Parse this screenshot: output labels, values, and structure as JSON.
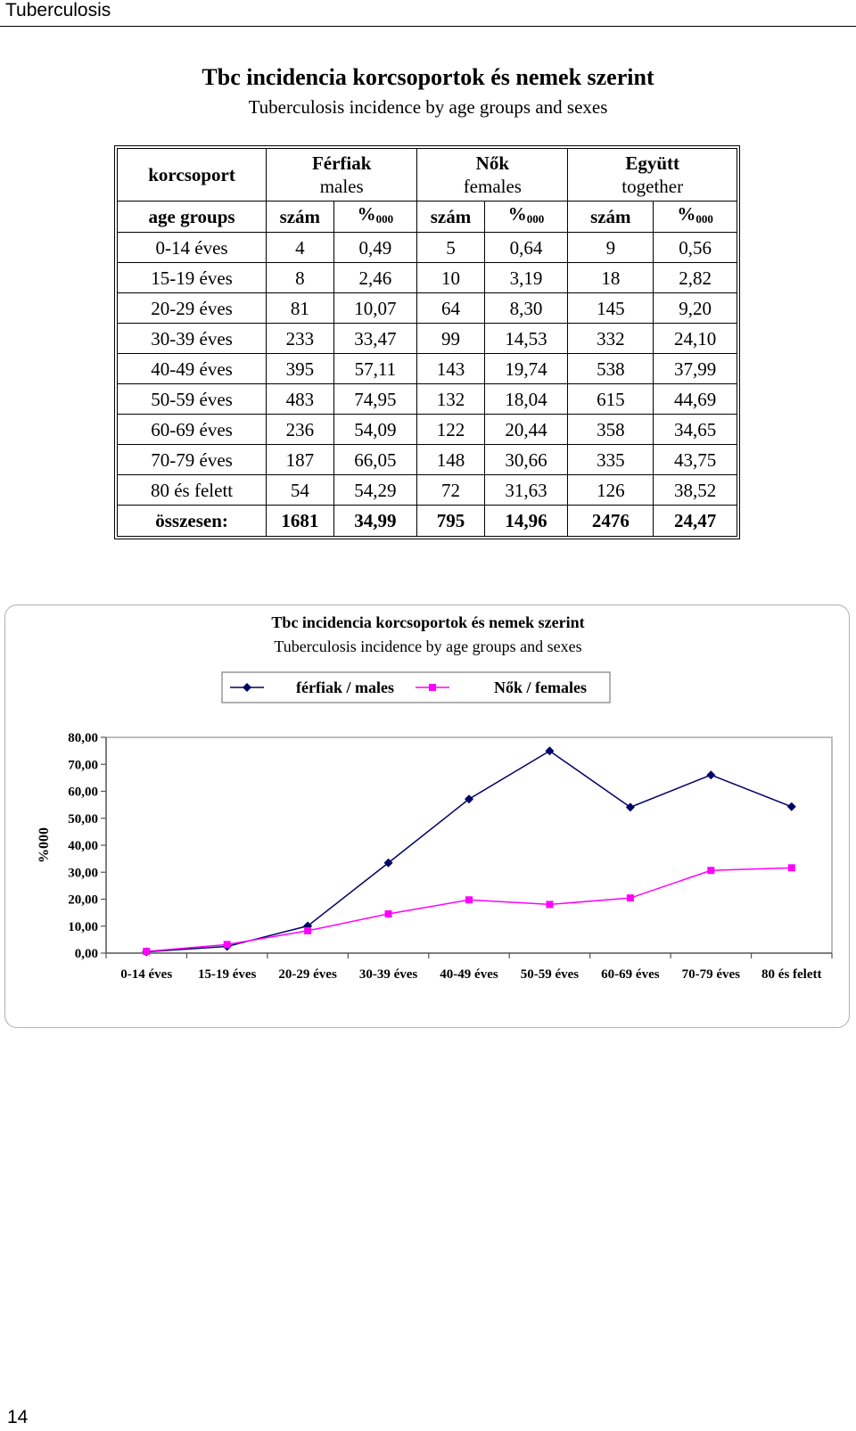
{
  "running_head": "Tuberculosis",
  "title": "Tbc incidencia korcsoportok és nemek szerint",
  "subtitle": "Tuberculosis incidence by age groups and sexes",
  "table": {
    "header_group": {
      "korcsoport": "korcsoport",
      "ferfiak": "Férfiak",
      "males": "males",
      "nok": "Nők",
      "females": "females",
      "egyutt": "Együtt",
      "together": "together"
    },
    "subheader": {
      "age_groups": "age groups",
      "szam": "szám",
      "permyriad_sign": "%",
      "permyriad_sub": "000"
    },
    "rows": [
      {
        "age": "0-14 éves",
        "m_n": "4",
        "m_r": "0,49",
        "f_n": "5",
        "f_r": "0,64",
        "t_n": "9",
        "t_r": "0,56"
      },
      {
        "age": "15-19 éves",
        "m_n": "8",
        "m_r": "2,46",
        "f_n": "10",
        "f_r": "3,19",
        "t_n": "18",
        "t_r": "2,82"
      },
      {
        "age": "20-29 éves",
        "m_n": "81",
        "m_r": "10,07",
        "f_n": "64",
        "f_r": "8,30",
        "t_n": "145",
        "t_r": "9,20"
      },
      {
        "age": "30-39 éves",
        "m_n": "233",
        "m_r": "33,47",
        "f_n": "99",
        "f_r": "14,53",
        "t_n": "332",
        "t_r": "24,10"
      },
      {
        "age": "40-49 éves",
        "m_n": "395",
        "m_r": "57,11",
        "f_n": "143",
        "f_r": "19,74",
        "t_n": "538",
        "t_r": "37,99"
      },
      {
        "age": "50-59 éves",
        "m_n": "483",
        "m_r": "74,95",
        "f_n": "132",
        "f_r": "18,04",
        "t_n": "615",
        "t_r": "44,69"
      },
      {
        "age": "60-69 éves",
        "m_n": "236",
        "m_r": "54,09",
        "f_n": "122",
        "f_r": "20,44",
        "t_n": "358",
        "t_r": "34,65"
      },
      {
        "age": "70-79 éves",
        "m_n": "187",
        "m_r": "66,05",
        "f_n": "148",
        "f_r": "30,66",
        "t_n": "335",
        "t_r": "43,75"
      },
      {
        "age": "80 és felett",
        "m_n": "54",
        "m_r": "54,29",
        "f_n": "72",
        "f_r": "31,63",
        "t_n": "126",
        "t_r": "38,52"
      }
    ],
    "total": {
      "age": "összesen:",
      "m_n": "1681",
      "m_r": "34,99",
      "f_n": "795",
      "f_r": "14,96",
      "t_n": "2476",
      "t_r": "24,47"
    }
  },
  "chart_data": {
    "type": "line",
    "title": "Tbc incidencia korcsoportok és nemek szerint",
    "subtitle": "Tuberculosis incidence by age groups and sexes",
    "ylabel": "%000",
    "xlabel": "",
    "ylim": [
      0,
      80
    ],
    "yticks": [
      "0,00",
      "10,00",
      "20,00",
      "30,00",
      "40,00",
      "50,00",
      "60,00",
      "70,00",
      "80,00"
    ],
    "categories": [
      "0-14 éves",
      "15-19 éves",
      "20-29 éves",
      "30-39 éves",
      "40-49 éves",
      "50-59 éves",
      "60-69 éves",
      "70-79 éves",
      "80 és felett"
    ],
    "legend_position": "top",
    "grid": false,
    "series": [
      {
        "name": "férfiak / males",
        "color": "#000066",
        "marker": "diamond",
        "values": [
          0.49,
          2.46,
          10.07,
          33.47,
          57.11,
          74.95,
          54.09,
          66.05,
          54.29
        ]
      },
      {
        "name": "Nők / females",
        "color": "#ff00ff",
        "marker": "square",
        "values": [
          0.64,
          3.19,
          8.3,
          14.53,
          19.74,
          18.04,
          20.44,
          30.66,
          31.63
        ]
      }
    ]
  },
  "page_number": "14"
}
